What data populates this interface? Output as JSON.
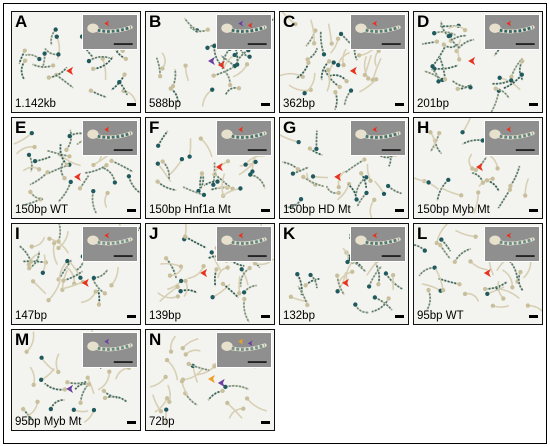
{
  "panels": [
    {
      "letter": "A",
      "caption": "1.142kb",
      "intensity": 0.75,
      "arrows": [
        "red"
      ]
    },
    {
      "letter": "B",
      "caption": "588bp",
      "intensity": 0.8,
      "arrows": [
        "purple",
        "red"
      ]
    },
    {
      "letter": "C",
      "caption": "362bp",
      "intensity": 0.55,
      "arrows": [
        "red"
      ]
    },
    {
      "letter": "D",
      "caption": "201bp",
      "intensity": 0.85,
      "arrows": [
        "red"
      ]
    },
    {
      "letter": "E",
      "caption": "150bp WT",
      "intensity": 0.7,
      "arrows": [
        "red"
      ]
    },
    {
      "letter": "F",
      "caption": "150bp Hnf1a Mt",
      "intensity": 0.65,
      "arrows": [
        "red"
      ]
    },
    {
      "letter": "G",
      "caption": "150bp HD Mt",
      "intensity": 0.7,
      "arrows": [
        "red"
      ]
    },
    {
      "letter": "H",
      "caption": "150bp Myb Mt",
      "intensity": 0.45,
      "arrows": [
        "red"
      ]
    },
    {
      "letter": "I",
      "caption": "147bp",
      "intensity": 0.3,
      "arrows": [
        "red"
      ]
    },
    {
      "letter": "J",
      "caption": "139bp",
      "intensity": 0.45,
      "arrows": [
        "red"
      ]
    },
    {
      "letter": "K",
      "caption": "132bp",
      "intensity": 0.6,
      "arrows": [
        "red"
      ]
    },
    {
      "letter": "L",
      "caption": "95bp WT",
      "intensity": 0.4,
      "arrows": [
        "red"
      ]
    },
    {
      "letter": "M",
      "caption": "95bp Myb Mt",
      "intensity": 0.4,
      "arrows": [
        "purple"
      ]
    },
    {
      "letter": "N",
      "caption": "72bp",
      "intensity": 0.3,
      "arrows": [
        "orange",
        "purple"
      ]
    }
  ],
  "colors": {
    "stain": "#1f5a5e",
    "body": "#d8d0b4",
    "red_arrow": "#e8321e",
    "purple_arrow": "#6b3fa0",
    "orange_arrow": "#f0a020",
    "inset_bg": "#8f8f8f",
    "panel_bg": "#f3f3ef"
  }
}
